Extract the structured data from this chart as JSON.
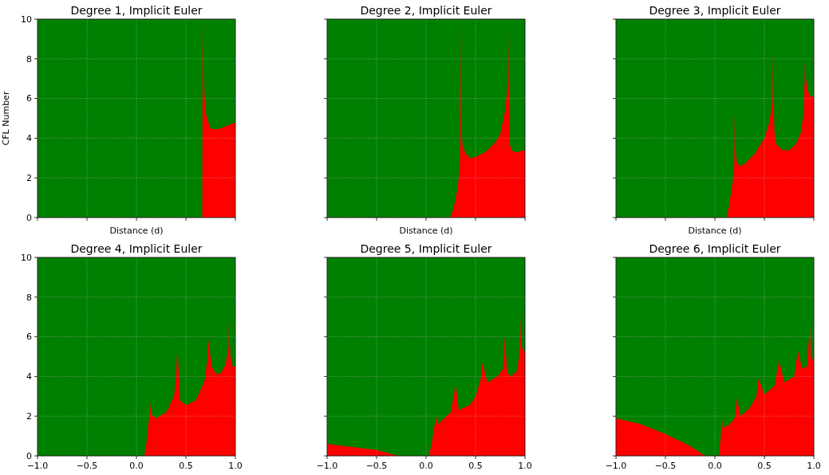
{
  "chart_data": [
    {
      "type": "area",
      "title": "Degree 1, Implicit Euler",
      "xlabel": "Distance (d)",
      "ylabel": "CFL Number",
      "grid": true,
      "tick_labels": "y",
      "xlim": [
        -1,
        1
      ],
      "ylim": [
        0,
        10
      ],
      "xticks": [
        {
          "value": -1,
          "label": null
        },
        {
          "value": -0.5,
          "label": null
        },
        {
          "value": 0,
          "label": null
        },
        {
          "value": 0.5,
          "label": null
        },
        {
          "value": 1,
          "label": null
        }
      ],
      "yticks": [
        {
          "value": 0,
          "label": "0"
        },
        {
          "value": 2,
          "label": "2"
        },
        {
          "value": 4,
          "label": "4"
        },
        {
          "value": 6,
          "label": "6"
        },
        {
          "value": 8,
          "label": "8"
        },
        {
          "value": 10,
          "label": "10"
        }
      ],
      "bands": [
        {
          "axis": "y",
          "from": 0,
          "to": 10,
          "color": "#008000"
        }
      ],
      "x": [
        -1,
        0.665,
        0.67,
        0.675,
        0.68,
        0.69,
        0.7,
        0.72,
        0.75,
        0.8,
        0.85,
        0.9,
        0.95,
        1
      ],
      "series": [
        {
          "color": "#ff0000",
          "values": [
            0,
            0,
            9.9,
            8.5,
            7,
            6,
            5.3,
            4.9,
            4.5,
            4.45,
            4.5,
            4.6,
            4.7,
            4.8
          ]
        }
      ]
    },
    {
      "type": "area",
      "title": "Degree 2, Implicit Euler",
      "xlabel": "Distance (d)",
      "grid": true,
      "tick_labels": false,
      "xlim": [
        -1,
        1
      ],
      "ylim": [
        0,
        10
      ],
      "xticks": [
        {
          "value": -1,
          "label": null
        },
        {
          "value": -0.5,
          "label": null
        },
        {
          "value": 0,
          "label": null
        },
        {
          "value": 0.5,
          "label": null
        },
        {
          "value": 1,
          "label": null
        }
      ],
      "yticks": [
        {
          "value": 0,
          "label": null
        },
        {
          "value": 2,
          "label": null
        },
        {
          "value": 4,
          "label": null
        },
        {
          "value": 6,
          "label": null
        },
        {
          "value": 8,
          "label": null
        },
        {
          "value": 10,
          "label": null
        }
      ],
      "bands": [
        {
          "axis": "y",
          "from": 0,
          "to": 10,
          "color": "#008000"
        }
      ],
      "x": [
        -1,
        0.24,
        0.28,
        0.32,
        0.34,
        0.345,
        0.35,
        0.355,
        0.37,
        0.4,
        0.45,
        0.5,
        0.6,
        0.7,
        0.75,
        0.8,
        0.83,
        0.835,
        0.84,
        0.85,
        0.88,
        0.92,
        1
      ],
      "series": [
        {
          "color": "#ff0000",
          "values": [
            0,
            0,
            0.5,
            1.5,
            2.5,
            3.2,
            9.9,
            4.5,
            3.6,
            3.2,
            3,
            3.05,
            3.3,
            3.8,
            4.2,
            5.4,
            7,
            9.4,
            4,
            3.6,
            3.3,
            3.3,
            3.4
          ]
        }
      ]
    },
    {
      "type": "area",
      "title": "Degree 3, Implicit Euler",
      "xlabel": "Distance (d)",
      "grid": true,
      "tick_labels": false,
      "xlim": [
        -1,
        1
      ],
      "ylim": [
        0,
        10
      ],
      "xticks": [
        {
          "value": -1,
          "label": null
        },
        {
          "value": -0.5,
          "label": null
        },
        {
          "value": 0,
          "label": null
        },
        {
          "value": 0.5,
          "label": null
        },
        {
          "value": 1,
          "label": null
        }
      ],
      "yticks": [
        {
          "value": 0,
          "label": null
        },
        {
          "value": 2,
          "label": null
        },
        {
          "value": 4,
          "label": null
        },
        {
          "value": 6,
          "label": null
        },
        {
          "value": 8,
          "label": null
        },
        {
          "value": 10,
          "label": null
        }
      ],
      "bands": [
        {
          "axis": "y",
          "from": 0,
          "to": 10,
          "color": "#008000"
        }
      ],
      "x": [
        -1,
        0.12,
        0.15,
        0.18,
        0.195,
        0.2,
        0.205,
        0.22,
        0.25,
        0.3,
        0.4,
        0.5,
        0.55,
        0.58,
        0.59,
        0.6,
        0.62,
        0.68,
        0.75,
        0.82,
        0.87,
        0.9,
        0.91,
        0.92,
        0.94,
        0.96,
        1
      ],
      "series": [
        {
          "color": "#ff0000",
          "values": [
            0,
            0,
            0.8,
            1.8,
            2.6,
            5.3,
            3.6,
            2.8,
            2.6,
            2.7,
            3.2,
            4,
            4.8,
            5.8,
            8.8,
            4.4,
            3.7,
            3.4,
            3.4,
            3.7,
            4.3,
            5.4,
            7.9,
            7,
            6.4,
            6.1,
            6.1
          ]
        }
      ]
    },
    {
      "type": "area",
      "title": "Degree 4, Implicit Euler",
      "grid": true,
      "xlim": [
        -1,
        1
      ],
      "ylim": [
        0,
        10
      ],
      "xticks": [
        {
          "value": -1,
          "label": "−1.0"
        },
        {
          "value": -0.5,
          "label": "−0.5"
        },
        {
          "value": 0,
          "label": "0.0"
        },
        {
          "value": 0.5,
          "label": "0.5"
        },
        {
          "value": 1,
          "label": "1.0"
        }
      ],
      "yticks": [
        {
          "value": 0,
          "label": "0"
        },
        {
          "value": 2,
          "label": "2"
        },
        {
          "value": 4,
          "label": "4"
        },
        {
          "value": 6,
          "label": "6"
        },
        {
          "value": 8,
          "label": "8"
        },
        {
          "value": 10,
          "label": "10"
        }
      ],
      "bands": [
        {
          "axis": "y",
          "from": 0,
          "to": 10,
          "color": "#008000"
        }
      ],
      "x": [
        -1,
        0.08,
        0.1,
        0.13,
        0.145,
        0.15,
        0.2,
        0.3,
        0.38,
        0.4,
        0.415,
        0.44,
        0.5,
        0.6,
        0.69,
        0.72,
        0.725,
        0.76,
        0.8,
        0.85,
        0.9,
        0.93,
        0.935,
        0.95,
        0.97,
        1
      ],
      "series": [
        {
          "color": "#ff0000",
          "values": [
            0,
            0,
            0.6,
            2,
            2.7,
            2.1,
            1.9,
            2.2,
            3,
            4,
            5.6,
            2.8,
            2.55,
            2.8,
            3.8,
            5,
            5.9,
            4.5,
            4.15,
            4.15,
            4.6,
            5.4,
            6.8,
            5,
            4.5,
            4.5
          ]
        }
      ]
    },
    {
      "type": "area",
      "title": "Degree 5, Implicit Euler",
      "grid": true,
      "tick_labels": "x",
      "xlim": [
        -1,
        1
      ],
      "ylim": [
        0,
        10
      ],
      "xticks": [
        {
          "value": -1,
          "label": "−1.0"
        },
        {
          "value": -0.5,
          "label": "−0.5"
        },
        {
          "value": 0,
          "label": "0.0"
        },
        {
          "value": 0.5,
          "label": "0.5"
        },
        {
          "value": 1,
          "label": "1.0"
        }
      ],
      "yticks": [
        {
          "value": 0,
          "label": null
        },
        {
          "value": 2,
          "label": null
        },
        {
          "value": 4,
          "label": null
        },
        {
          "value": 6,
          "label": null
        },
        {
          "value": 8,
          "label": null
        },
        {
          "value": 10,
          "label": null
        }
      ],
      "bands": [
        {
          "axis": "y",
          "from": 0,
          "to": 10,
          "color": "#008000"
        }
      ],
      "x": [
        -1,
        -0.5,
        -0.28,
        0.03,
        0.06,
        0.1,
        0.12,
        0.25,
        0.3,
        0.33,
        0.45,
        0.5,
        0.55,
        0.57,
        0.62,
        0.72,
        0.78,
        0.795,
        0.82,
        0.86,
        0.92,
        0.94,
        0.95,
        0.96,
        1
      ],
      "series": [
        {
          "color": "#ff0000",
          "values": [
            0.6,
            0.3,
            0,
            0,
            0.7,
            2,
            1.6,
            2.2,
            3.6,
            2.3,
            2.6,
            3,
            3.8,
            4.7,
            3.7,
            4,
            4.4,
            6,
            4.2,
            4,
            4.3,
            5,
            7.3,
            5.5,
            5.2
          ]
        }
      ]
    },
    {
      "type": "area",
      "title": "Degree 6, Implicit Euler",
      "grid": true,
      "tick_labels": "x",
      "xlim": [
        -1,
        1
      ],
      "ylim": [
        0,
        10
      ],
      "xticks": [
        {
          "value": -1,
          "label": "−1.0"
        },
        {
          "value": -0.5,
          "label": "−0.5"
        },
        {
          "value": 0,
          "label": "0.0"
        },
        {
          "value": 0.5,
          "label": "0.5"
        },
        {
          "value": 1,
          "label": "1.0"
        }
      ],
      "yticks": [
        {
          "value": 0,
          "label": null
        },
        {
          "value": 2,
          "label": null
        },
        {
          "value": 4,
          "label": null
        },
        {
          "value": 6,
          "label": null
        },
        {
          "value": 8,
          "label": null
        },
        {
          "value": 10,
          "label": null
        }
      ],
      "bands": [
        {
          "axis": "y",
          "from": 0,
          "to": 10,
          "color": "#008000"
        }
      ],
      "x": [
        -1,
        -0.75,
        -0.5,
        -0.25,
        -0.1,
        0.04,
        0.06,
        0.07,
        0.08,
        0.15,
        0.2,
        0.22,
        0.26,
        0.35,
        0.42,
        0.44,
        0.5,
        0.6,
        0.65,
        0.7,
        0.8,
        0.84,
        0.88,
        0.93,
        0.96,
        0.97,
        1
      ],
      "series": [
        {
          "color": "#ff0000",
          "values": [
            1.9,
            1.6,
            1.1,
            0.5,
            0,
            0,
            1,
            2,
            1.4,
            1.6,
            1.9,
            2.9,
            2,
            2.4,
            3,
            3.9,
            3.1,
            3.5,
            4.8,
            3.7,
            4,
            5.3,
            4.4,
            4.5,
            6.6,
            5,
            4.8
          ]
        }
      ]
    }
  ]
}
